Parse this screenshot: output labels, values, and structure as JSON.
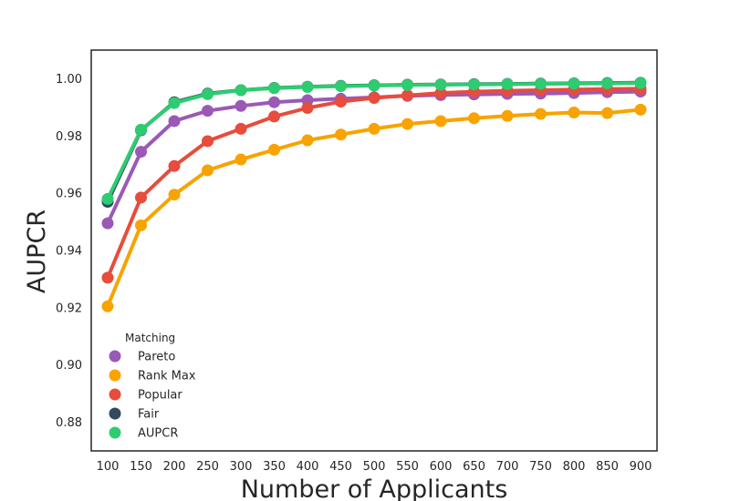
{
  "chart_data": {
    "type": "line",
    "title": "",
    "xlabel": "Number of Applicants",
    "ylabel": "AUPCR",
    "categories": [
      "100",
      "150",
      "200",
      "250",
      "300",
      "350",
      "400",
      "450",
      "500",
      "550",
      "600",
      "650",
      "700",
      "750",
      "800",
      "850",
      "900"
    ],
    "ylim": [
      0.87,
      1.01
    ],
    "yticks": [
      0.88,
      0.9,
      0.92,
      0.94,
      0.96,
      0.98,
      1.0
    ],
    "ytick_labels": [
      "0.88",
      "0.90",
      "0.92",
      "0.94",
      "0.96",
      "0.98",
      "1.00"
    ],
    "grid": false,
    "legend": {
      "title": "Matching",
      "position": "lower-left"
    },
    "series": [
      {
        "name": "Pareto",
        "color": "#9b59b6",
        "values": [
          0.9495,
          0.9745,
          0.9852,
          0.9888,
          0.9905,
          0.9918,
          0.9925,
          0.993,
          0.9935,
          0.994,
          0.9943,
          0.9945,
          0.9947,
          0.9948,
          0.995,
          0.9953,
          0.9955
        ]
      },
      {
        "name": "Rank Max",
        "color": "#f8a300",
        "values": [
          0.9205,
          0.9488,
          0.9595,
          0.968,
          0.9718,
          0.9752,
          0.9785,
          0.9805,
          0.9825,
          0.9842,
          0.9852,
          0.9862,
          0.987,
          0.9877,
          0.9882,
          0.988,
          0.9892
        ]
      },
      {
        "name": "Popular",
        "color": "#e74c3c",
        "values": [
          0.9305,
          0.9585,
          0.9695,
          0.9782,
          0.9825,
          0.9868,
          0.9898,
          0.992,
          0.9933,
          0.9942,
          0.995,
          0.9955,
          0.9958,
          0.996,
          0.9962,
          0.9964,
          0.9965
        ]
      },
      {
        "name": "Fair",
        "color": "#34495e",
        "values": [
          0.957,
          0.982,
          0.9918,
          0.9948,
          0.996,
          0.9968,
          0.9972,
          0.9975,
          0.9977,
          0.9979,
          0.998,
          0.9981,
          0.9982,
          0.9983,
          0.9984,
          0.9985,
          0.9986
        ]
      },
      {
        "name": "AUPCR",
        "color": "#2ecc71",
        "values": [
          0.958,
          0.9822,
          0.9915,
          0.9946,
          0.996,
          0.9967,
          0.9971,
          0.9974,
          0.9976,
          0.9978,
          0.9979,
          0.998,
          0.9981,
          0.9982,
          0.9983,
          0.9984,
          0.9985
        ]
      }
    ]
  }
}
